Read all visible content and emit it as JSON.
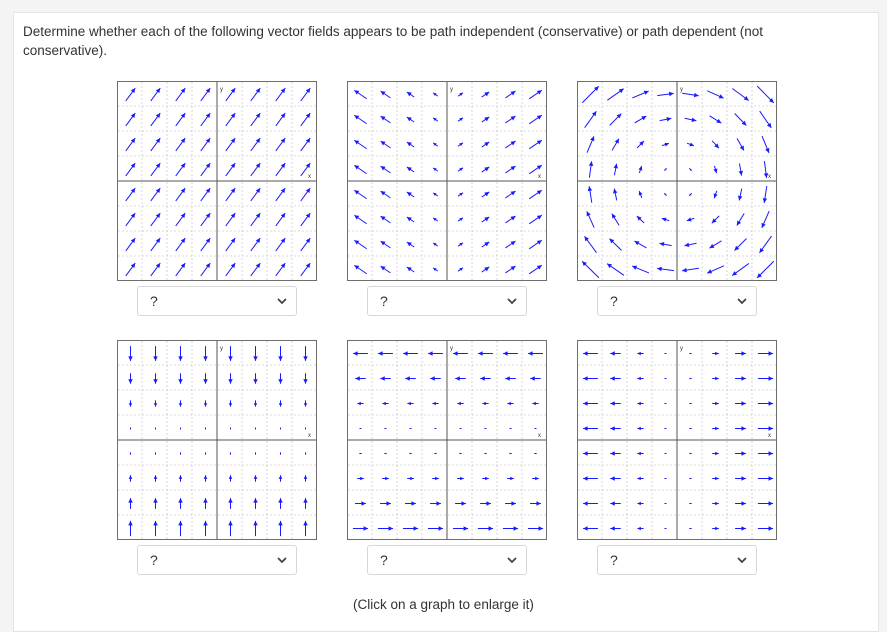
{
  "question": {
    "text": "Determine whether each of the following vector fields appears to be path independent (conservative) or path dependent (not conservative)."
  },
  "axis_labels": {
    "x": "x",
    "y": "y"
  },
  "colors": {
    "arrow": "#1a1aff",
    "grid": "#b8b8b8",
    "axis": "#555555",
    "frame": "#6e6e6e"
  },
  "graphs": [
    {
      "field": "diagonal-up-right",
      "answer": "?"
    },
    {
      "field": "diagonal-up-left-right-split",
      "answer": "?"
    },
    {
      "field": "clockwise-rotation",
      "answer": "?"
    },
    {
      "field": "vertical-toward-x-axis",
      "answer": "?"
    },
    {
      "field": "horizontal-left-top-right-bottom",
      "answer": "?"
    },
    {
      "field": "horizontal-outward",
      "answer": "?"
    }
  ],
  "dropdown_icon": "chevron-down-icon",
  "footer": {
    "hint": "(Click on a graph to enlarge it)"
  }
}
